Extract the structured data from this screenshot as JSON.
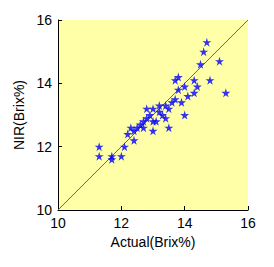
{
  "chart_data": {
    "type": "scatter",
    "x_label": "Actual(Brix%)",
    "y_label": "NIR(Brix%)",
    "xlim": [
      10,
      16
    ],
    "xticks": [
      10,
      12,
      14,
      16
    ],
    "ylim": [
      10,
      16
    ],
    "yticks": [
      10,
      12,
      14,
      16
    ],
    "grid": false,
    "series": [
      {
        "type": "scatter",
        "color": "#0000ff",
        "marker": "star",
        "x": [
          11.3,
          11.3,
          11.7,
          11.7,
          12.0,
          12.1,
          12.2,
          12.3,
          12.4,
          12.4,
          12.5,
          12.6,
          12.7,
          12.7,
          12.8,
          12.8,
          12.9,
          13.0,
          13.0,
          13.0,
          13.1,
          13.2,
          13.2,
          13.3,
          13.4,
          13.4,
          13.5,
          13.5,
          13.6,
          13.7,
          13.7,
          13.8,
          13.8,
          13.9,
          14.0,
          14.0,
          14.1,
          14.3,
          14.3,
          14.4,
          14.5,
          14.6,
          14.7,
          14.8,
          15.1,
          15.3
        ],
        "values": [
          12.0,
          11.7,
          11.6,
          11.7,
          11.7,
          12.0,
          12.4,
          12.6,
          12.5,
          12.2,
          12.6,
          12.7,
          12.8,
          12.6,
          13.2,
          12.9,
          13.0,
          12.5,
          12.8,
          13.2,
          12.8,
          13.3,
          13.1,
          13.0,
          12.9,
          13.3,
          13.2,
          12.6,
          13.4,
          14.1,
          13.5,
          13.8,
          14.2,
          13.4,
          13.0,
          13.9,
          13.6,
          13.7,
          14.1,
          13.9,
          14.6,
          15.0,
          15.3,
          14.1,
          14.7,
          13.7
        ]
      },
      {
        "type": "line",
        "color": "#ff00ff",
        "line_style": "solid",
        "x": [
          10,
          16
        ],
        "values": [
          10,
          16
        ]
      }
    ]
  }
}
